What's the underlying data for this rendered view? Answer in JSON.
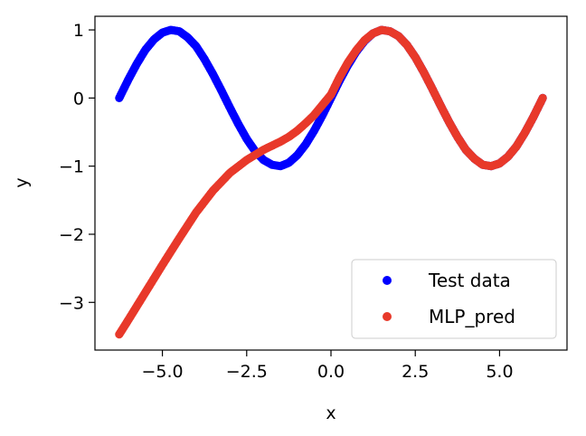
{
  "chart_data": {
    "type": "scatter",
    "title": "",
    "xlabel": "x",
    "ylabel": "y",
    "xlim": [
      -7.0,
      7.0
    ],
    "ylim": [
      -3.7,
      1.2
    ],
    "xticks": [
      -5.0,
      -2.5,
      0.0,
      2.5,
      5.0
    ],
    "xtick_labels": [
      "−5.0",
      "−2.5",
      "0.0",
      "2.5",
      "5.0"
    ],
    "yticks": [
      1,
      0,
      -1,
      -2,
      -3
    ],
    "ytick_labels": [
      "1",
      "0",
      "−1",
      "−2",
      "−3"
    ],
    "grid": false,
    "legend": "lower-right",
    "series": [
      {
        "name": "Test data",
        "color": "#0000ff",
        "x": [
          -6.28,
          -6.0,
          -5.75,
          -5.5,
          -5.25,
          -5.0,
          -4.75,
          -4.5,
          -4.25,
          -4.0,
          -3.75,
          -3.5,
          -3.25,
          -3.0,
          -2.75,
          -2.5,
          -2.25,
          -2.0,
          -1.75,
          -1.5,
          -1.25,
          -1.0,
          -0.75,
          -0.5,
          -0.25,
          0.0,
          0.25,
          0.5,
          0.75,
          1.0,
          1.25,
          1.5,
          1.75,
          2.0,
          2.25,
          2.5,
          2.75,
          3.0,
          3.25,
          3.5,
          3.75,
          4.0,
          4.25,
          4.5,
          4.75,
          5.0,
          5.25,
          5.5,
          5.75,
          6.0,
          6.28
        ],
        "y": [
          0.0,
          0.28,
          0.51,
          0.71,
          0.86,
          0.96,
          1.0,
          0.98,
          0.89,
          0.76,
          0.57,
          0.35,
          0.11,
          -0.14,
          -0.38,
          -0.6,
          -0.78,
          -0.91,
          -0.98,
          -1.0,
          -0.95,
          -0.84,
          -0.68,
          -0.48,
          -0.25,
          0.0,
          0.25,
          0.48,
          0.68,
          0.84,
          0.95,
          1.0,
          0.98,
          0.91,
          0.78,
          0.6,
          0.38,
          0.14,
          -0.11,
          -0.35,
          -0.57,
          -0.76,
          -0.89,
          -0.98,
          -1.0,
          -0.96,
          -0.86,
          -0.71,
          -0.51,
          -0.28,
          0.0
        ]
      },
      {
        "name": "MLP_pred",
        "color": "#e8392a",
        "x": [
          -6.28,
          -6.0,
          -5.5,
          -5.0,
          -4.5,
          -4.0,
          -3.5,
          -3.0,
          -2.5,
          -2.0,
          -1.75,
          -1.5,
          -1.25,
          -1.0,
          -0.75,
          -0.5,
          -0.25,
          0.0,
          0.25,
          0.5,
          0.75,
          1.0,
          1.25,
          1.5,
          1.75,
          2.0,
          2.25,
          2.5,
          2.75,
          3.0,
          3.25,
          3.5,
          3.75,
          4.0,
          4.25,
          4.5,
          4.75,
          5.0,
          5.25,
          5.5,
          5.75,
          6.0,
          6.28
        ],
        "y": [
          -3.47,
          -3.25,
          -2.85,
          -2.45,
          -2.06,
          -1.68,
          -1.36,
          -1.1,
          -0.91,
          -0.76,
          -0.7,
          -0.64,
          -0.57,
          -0.48,
          -0.37,
          -0.25,
          -0.1,
          0.05,
          0.3,
          0.52,
          0.7,
          0.85,
          0.95,
          1.0,
          0.98,
          0.91,
          0.78,
          0.6,
          0.38,
          0.14,
          -0.11,
          -0.35,
          -0.57,
          -0.76,
          -0.89,
          -0.98,
          -1.0,
          -0.96,
          -0.86,
          -0.71,
          -0.51,
          -0.28,
          0.0
        ]
      }
    ]
  }
}
